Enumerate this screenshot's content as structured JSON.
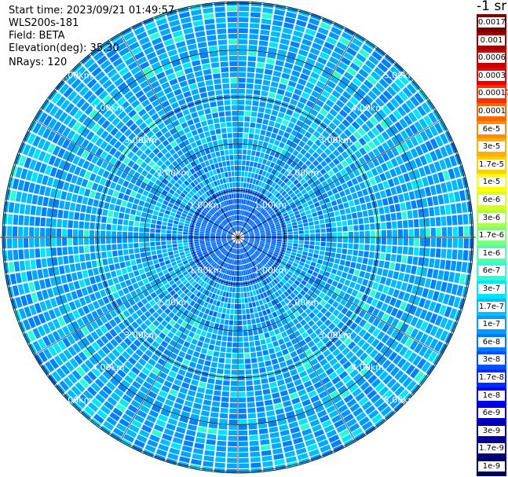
{
  "meta": {
    "start_time": "Start time: 2023/09/21 01:49:57",
    "instrument": "WLS200s-181",
    "field": "Field: BETA",
    "elevation": "Elevation(deg): 35.30",
    "nrays": "NRays: 120"
  },
  "colorbar": {
    "title": "-1 sr",
    "labels": [
      "0.0017",
      "0.001",
      "0.0006",
      "0.0003",
      "0.00017",
      "0.0001",
      "6e-5",
      "3e-5",
      "1.7e-5",
      "1e-5",
      "6e-6",
      "3e-6",
      "1.7e-6",
      "1e-6",
      "6e-7",
      "3e-7",
      "1.7e-7",
      "1e-7",
      "6e-8",
      "3e-8",
      "1.7e-8",
      "1e-8",
      "6e-9",
      "3e-9",
      "1.7e-9",
      "1e-9"
    ],
    "colors": [
      "#7a0000",
      "#a00000",
      "#c80000",
      "#ee0000",
      "#ff3000",
      "#ff6600",
      "#ff8c00",
      "#ffb000",
      "#ffd000",
      "#ffff00",
      "#d8ff1e",
      "#a8ff50",
      "#7cff7a",
      "#50ffa4",
      "#2cffd0",
      "#00e4ff",
      "#00c0ff",
      "#009cff",
      "#0078ff",
      "#0050ff",
      "#002cff",
      "#0000f0",
      "#0000cc",
      "#0000a8",
      "#000080",
      "#00005a"
    ]
  },
  "chart_data": {
    "type": "heatmap",
    "projection": "polar (PPI scan)",
    "field": "BETA",
    "units": "-1 sr",
    "n_rays": 120,
    "range_rings_km": [
      1,
      2,
      3,
      4,
      5
    ],
    "ring_labels": [
      "1.00km",
      "2.00km",
      "3.00km",
      "4.00km",
      "5.00km"
    ],
    "visible_extra_ring_label": "6.",
    "dominant_value_range": [
      "6e-9",
      "1.7e-7"
    ],
    "color_scale": "log"
  }
}
